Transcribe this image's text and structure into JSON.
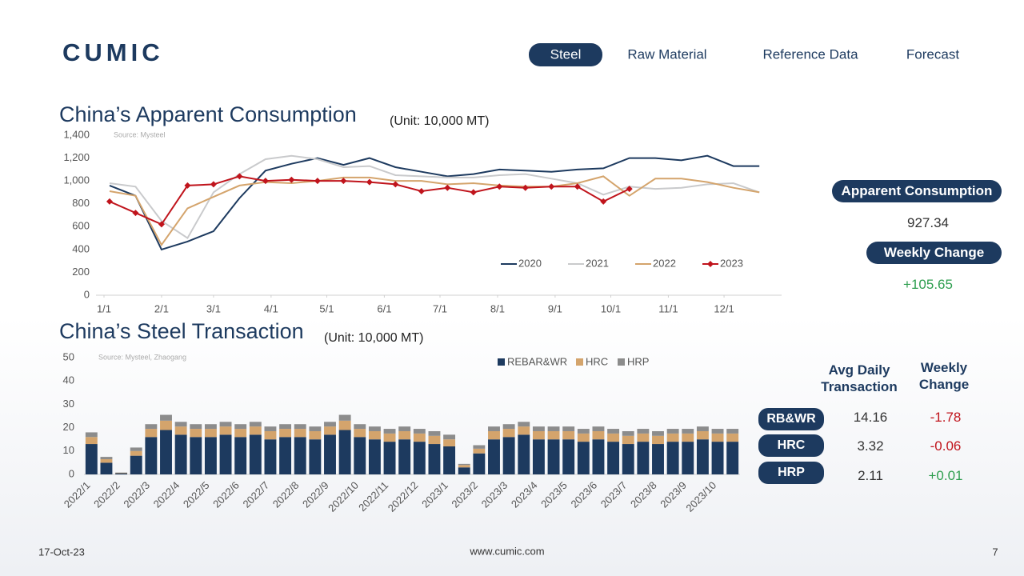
{
  "header": {
    "logo": "CUMIC",
    "nav": [
      "Steel",
      "Raw Material",
      "Reference Data",
      "Forecast"
    ]
  },
  "chart_data": [
    {
      "type": "line",
      "title": "China’s Apparent Consumption",
      "unit": "(Unit: 10,000 MT)",
      "source": "Source: Mysteel",
      "x": [
        3,
        17,
        31,
        45,
        59,
        73,
        87,
        101,
        115,
        129,
        143,
        157,
        171,
        185,
        199,
        213,
        227,
        241,
        255,
        269,
        283,
        297,
        311,
        325,
        339,
        353
      ],
      "xlim": [
        0,
        365
      ],
      "xticks": [
        {
          "value": 0,
          "label": "1/1"
        },
        {
          "value": 31,
          "label": "2/1"
        },
        {
          "value": 59,
          "label": "3/1"
        },
        {
          "value": 90,
          "label": "4/1"
        },
        {
          "value": 120,
          "label": "5/1"
        },
        {
          "value": 151,
          "label": "6/1"
        },
        {
          "value": 181,
          "label": "7/1"
        },
        {
          "value": 212,
          "label": "8/1"
        },
        {
          "value": 243,
          "label": "9/1"
        },
        {
          "value": 273,
          "label": "10/1"
        },
        {
          "value": 304,
          "label": "11/1"
        },
        {
          "value": 334,
          "label": "12/1"
        }
      ],
      "ylim": [
        0,
        1400
      ],
      "yticks": [
        0,
        200,
        400,
        600,
        800,
        {
          "value": 1000,
          "label": "1,000"
        },
        {
          "value": 1200,
          "label": "1,200"
        },
        {
          "value": 1400,
          "label": "1,400"
        }
      ],
      "grid": false,
      "legend": "bottom-right",
      "series": [
        {
          "name": "2020",
          "color": "#1d3a5f",
          "values": [
            960,
            870,
            400,
            470,
            560,
            850,
            1090,
            1150,
            1200,
            1140,
            1200,
            1120,
            1080,
            1040,
            1060,
            1100,
            1090,
            1080,
            1100,
            1110,
            1200,
            1200,
            1180,
            1220,
            1130,
            1130
          ]
        },
        {
          "name": "2021",
          "color": "#c9cacc",
          "values": [
            980,
            950,
            650,
            500,
            900,
            1060,
            1190,
            1220,
            1190,
            1120,
            1130,
            1050,
            1040,
            1030,
            1030,
            1050,
            1060,
            1020,
            980,
            880,
            950,
            930,
            940,
            970,
            980,
            900
          ]
        },
        {
          "name": "2022",
          "color": "#d4a46c",
          "values": [
            910,
            870,
            440,
            760,
            860,
            960,
            990,
            980,
            1000,
            1030,
            1030,
            1000,
            1000,
            970,
            980,
            960,
            950,
            950,
            980,
            1040,
            870,
            1020,
            1020,
            990,
            940,
            900
          ]
        },
        {
          "name": "2023",
          "color": "#c0141c",
          "marker": "diamond",
          "values": [
            820,
            720,
            620,
            960,
            970,
            1040,
            1000,
            1010,
            1000,
            1000,
            990,
            970,
            910,
            940,
            900,
            950,
            940,
            950,
            950,
            820,
            930,
            null,
            null,
            null,
            null,
            null
          ]
        }
      ]
    },
    {
      "type": "bar",
      "stacked": true,
      "title": "China’s Steel Transaction",
      "unit": "(Unit: 10,000 MT)",
      "source": "Source: Mysteel, Zhaogang",
      "categories": [
        "2022/1",
        null,
        "2022/2",
        null,
        "2022/3",
        null,
        "2022/4",
        null,
        "2022/5",
        null,
        "2022/6",
        null,
        "2022/7",
        null,
        "2022/8",
        null,
        "2022/9",
        null,
        "2022/10",
        null,
        "2022/11",
        null,
        "2022/12",
        null,
        "2023/1",
        null,
        "2023/2",
        null,
        "2023/3",
        null,
        "2023/4",
        null,
        "2023/5",
        null,
        "2023/6",
        null,
        "2023/7",
        null,
        "2023/8",
        null,
        "2023/9",
        null,
        "2023/10",
        null
      ],
      "ylim": [
        0,
        50
      ],
      "yticks": [
        0,
        10,
        20,
        30,
        40,
        50
      ],
      "grid": false,
      "legend": "top",
      "series": [
        {
          "name": "REBAR&WR",
          "color": "#1d3a5f",
          "values": [
            13,
            5,
            0.5,
            8,
            16,
            19,
            17,
            16,
            16,
            17,
            16,
            17,
            15,
            16,
            16,
            15,
            17,
            19,
            16,
            15,
            14,
            15,
            14,
            13,
            12,
            3,
            9,
            15,
            16,
            17,
            15,
            15,
            15,
            14,
            15,
            14,
            13,
            14,
            13,
            14,
            14,
            15,
            14,
            14
          ]
        },
        {
          "name": "HRC",
          "color": "#d4a46c",
          "values": [
            3,
            1.5,
            0.2,
            2,
            3.5,
            4,
            3.5,
            3.5,
            3.5,
            3.5,
            3.5,
            3.5,
            3.5,
            3.5,
            3.5,
            3.5,
            3.5,
            4,
            3.5,
            3.5,
            3.5,
            3.5,
            3.5,
            3.5,
            3,
            1,
            2,
            3.5,
            3.5,
            3.5,
            3.5,
            3.5,
            3.5,
            3.5,
            3.5,
            3.5,
            3.5,
            3.5,
            3.5,
            3.5,
            3.5,
            3.5,
            3.5,
            3.5
          ]
        },
        {
          "name": "HRP",
          "color": "#8c8c8c",
          "values": [
            2,
            1,
            0.1,
            1.5,
            2,
            2.5,
            2,
            2,
            2,
            2,
            2,
            2,
            2,
            2,
            2,
            2,
            2,
            2.5,
            2,
            2,
            2,
            2,
            2,
            2,
            2,
            0.5,
            1.5,
            2,
            2,
            2,
            2,
            2,
            2,
            2,
            2,
            2,
            2,
            2,
            2,
            2,
            2,
            2,
            2,
            2
          ]
        }
      ]
    }
  ],
  "consumption_panel": {
    "label": "Apparent Consumption",
    "value": "927.34",
    "change_label": "Weekly Change",
    "change": "+105.65"
  },
  "transaction_table": {
    "headers": [
      "Avg Daily Transaction",
      "Weekly Change"
    ],
    "rows": [
      [
        "RB&WR",
        "14.16",
        "-1.78"
      ],
      [
        "HRC",
        "3.32",
        "-0.06"
      ],
      [
        "HRP",
        "2.11",
        "+0.01"
      ]
    ]
  },
  "footer": {
    "date": "17-Oct-23",
    "website": "www.cumic.com",
    "page": "7"
  }
}
